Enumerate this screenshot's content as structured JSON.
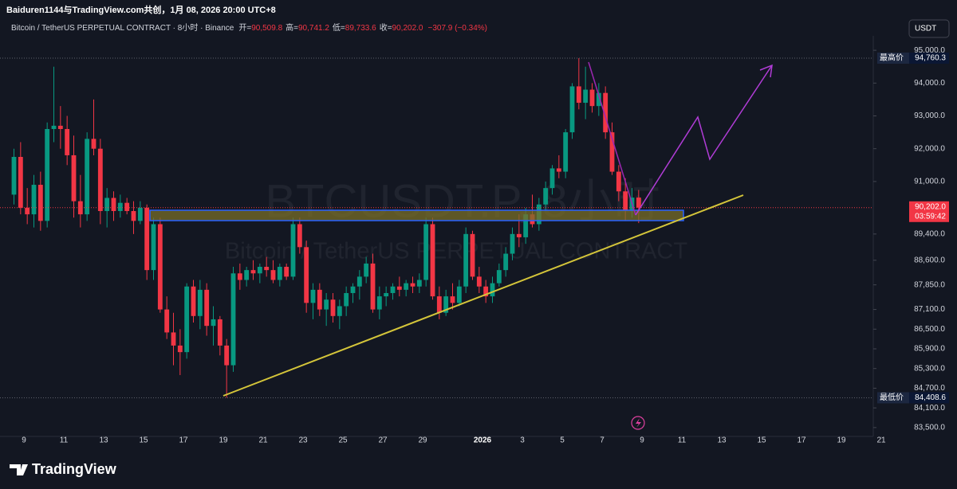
{
  "header": {
    "credit": "Baiduren1144与TradingView.com共创，1月 08, 2026 20:00 UTC+8",
    "legend": [
      {
        "label": "开=",
        "value": "90,509.8"
      },
      {
        "label": "高=",
        "value": "90,741.2"
      },
      {
        "label": "低=",
        "value": "89,733.6"
      },
      {
        "label": "收=",
        "value": "90,202.0"
      }
    ],
    "change": "−307.9 (−0.34%)",
    "currency": "USDT"
  },
  "chart_data": {
    "type": "candlestick",
    "title": "Bitcoin / TetherUS PERPETUAL CONTRACT · 8小时 · Binance",
    "watermark": "BTCUSDT.P, 8小时",
    "watermark_subtitle": "Bitcoin / TetherUS PERPETUAL CONTRACT",
    "up_color": "#089981",
    "down_color": "#f23645",
    "open": [
      90600,
      91750,
      90200,
      90000,
      90900,
      89800,
      92600,
      92700,
      92600,
      91800,
      90400,
      90000,
      92300,
      92000,
      90100,
      90500,
      90100,
      90350,
      90100,
      89800,
      90200,
      88300,
      89700,
      87100,
      86400,
      86000,
      85800,
      87800,
      86900,
      87700,
      86600,
      86800,
      86000,
      85400,
      88200,
      88000,
      88300,
      88200,
      88400,
      88300,
      88000,
      88400,
      88100,
      89700,
      89000,
      87300,
      87700,
      87100,
      87400,
      86900,
      87200,
      87600,
      87800,
      88100,
      88500,
      87100,
      87500,
      87600,
      87800,
      87700,
      87900,
      87800,
      88000,
      89700,
      87500,
      87000,
      87500,
      87300,
      87800,
      89400,
      88100,
      87800,
      87500,
      87900,
      88300,
      88800,
      89400,
      89300,
      90000,
      89700,
      90300,
      90800,
      91400,
      91300,
      92500,
      93900,
      93400,
      93800,
      93300,
      93700,
      92500,
      91300,
      90700,
      90100,
      90509.8
    ],
    "high": [
      92000,
      92200,
      90800,
      91200,
      91300,
      92800,
      94500,
      93300,
      93000,
      92400,
      91200,
      92500,
      93500,
      92300,
      90800,
      90700,
      90600,
      90500,
      90400,
      90400,
      90300,
      89900,
      89900,
      87500,
      87000,
      86500,
      87900,
      88000,
      88000,
      87900,
      87200,
      86900,
      86200,
      88400,
      88500,
      88400,
      88600,
      88500,
      88700,
      88600,
      88500,
      88500,
      89900,
      89900,
      89200,
      87900,
      87900,
      87600,
      87600,
      87400,
      87800,
      87900,
      88300,
      88700,
      88800,
      87800,
      87800,
      87900,
      88100,
      88000,
      88100,
      88200,
      89900,
      89900,
      87800,
      87700,
      87900,
      88000,
      89600,
      89500,
      88400,
      88000,
      88100,
      88500,
      89000,
      89600,
      90000,
      90200,
      90600,
      90500,
      91000,
      91500,
      91800,
      92600,
      94000,
      94760.3,
      94500,
      94000,
      94000,
      93900,
      92800,
      91500,
      91100,
      90800,
      90741.2
    ],
    "low": [
      90300,
      90000,
      89700,
      89600,
      89500,
      89600,
      92200,
      92000,
      91500,
      89900,
      89600,
      89800,
      91800,
      89700,
      89600,
      89800,
      89900,
      90000,
      89400,
      89700,
      88000,
      88000,
      87000,
      86200,
      85400,
      85100,
      85600,
      86700,
      86500,
      86300,
      86000,
      85700,
      84408.6,
      85200,
      87700,
      87800,
      88000,
      87900,
      88100,
      87900,
      87800,
      88000,
      88000,
      88800,
      87000,
      86800,
      86900,
      86600,
      86700,
      86500,
      86900,
      87300,
      87400,
      87900,
      87000,
      86800,
      87200,
      87400,
      87500,
      87500,
      87600,
      87600,
      87800,
      87400,
      86800,
      86900,
      87100,
      87200,
      87600,
      88000,
      87600,
      87300,
      87300,
      87800,
      88100,
      88600,
      89000,
      89100,
      89600,
      89500,
      90100,
      90600,
      91100,
      91100,
      92300,
      93200,
      92900,
      93100,
      93000,
      92300,
      91200,
      90400,
      89800,
      89900,
      89733.6
    ],
    "close": [
      91750,
      90200,
      90000,
      90900,
      89800,
      92600,
      92700,
      92600,
      91800,
      90400,
      90000,
      92300,
      92000,
      90100,
      90500,
      90100,
      90350,
      90100,
      89800,
      90200,
      88300,
      89700,
      87100,
      86400,
      86000,
      85800,
      87800,
      86900,
      87700,
      86600,
      86800,
      86000,
      85400,
      88200,
      88000,
      88300,
      88200,
      88400,
      88300,
      88000,
      88400,
      88100,
      89700,
      89000,
      87300,
      87700,
      87100,
      87400,
      86900,
      87200,
      87600,
      87800,
      88100,
      88500,
      87100,
      87500,
      87600,
      87800,
      87700,
      87900,
      87800,
      88000,
      89700,
      87500,
      87000,
      87500,
      87300,
      87800,
      89400,
      88100,
      87800,
      87500,
      87900,
      88300,
      88800,
      89400,
      89300,
      90000,
      89700,
      90300,
      90800,
      91400,
      91300,
      92500,
      93900,
      93400,
      93800,
      93300,
      93700,
      92500,
      91300,
      90700,
      90100,
      90509.8,
      90202.0
    ],
    "xlim": [
      -1.6,
      129.8
    ],
    "xticks": [
      {
        "value": 2,
        "label": "9"
      },
      {
        "value": 8,
        "label": "11"
      },
      {
        "value": 14,
        "label": "13"
      },
      {
        "value": 20,
        "label": "15"
      },
      {
        "value": 26,
        "label": "17"
      },
      {
        "value": 32,
        "label": "19"
      },
      {
        "value": 38,
        "label": "21"
      },
      {
        "value": 44,
        "label": "23"
      },
      {
        "value": 50,
        "label": "25"
      },
      {
        "value": 56,
        "label": "27"
      },
      {
        "value": 62,
        "label": "29"
      },
      {
        "value": 71,
        "label": "2026"
      },
      {
        "value": 77,
        "label": "3"
      },
      {
        "value": 83,
        "label": "5"
      },
      {
        "value": 89,
        "label": "7"
      },
      {
        "value": 95,
        "label": "9"
      },
      {
        "value": 101,
        "label": "11"
      },
      {
        "value": 107,
        "label": "13"
      },
      {
        "value": 113,
        "label": "15"
      },
      {
        "value": 119,
        "label": "17"
      },
      {
        "value": 125,
        "label": "19"
      },
      {
        "value": 131,
        "label": "21"
      }
    ],
    "ylim": [
      83230,
      95440
    ],
    "yticks": [
      {
        "value": 95000,
        "label": "95,000.0"
      },
      {
        "value": 94000,
        "label": "94,000.0"
      },
      {
        "value": 93000,
        "label": "93,000.0"
      },
      {
        "value": 92000,
        "label": "92,000.0"
      },
      {
        "value": 91000,
        "label": "91,000.0"
      },
      {
        "value": 89400,
        "label": "89,400.0"
      },
      {
        "value": 88600,
        "label": "88,600.0"
      },
      {
        "value": 87850,
        "label": "87,850.0"
      },
      {
        "value": 87100,
        "label": "87,100.0"
      },
      {
        "value": 86500,
        "label": "86,500.0"
      },
      {
        "value": 85900,
        "label": "85,900.0"
      },
      {
        "value": 85300,
        "label": "85,300.0"
      },
      {
        "value": 84700,
        "label": "84,700.0"
      },
      {
        "value": 84100,
        "label": "84,100.0"
      },
      {
        "value": 83500,
        "label": "83,500.0"
      }
    ],
    "grid": false,
    "high_label": "最高价",
    "high_value": "94,760.3",
    "low_label": "最低价",
    "low_value": "84,408.6",
    "last_price": "90,202.0",
    "countdown": "03:59:42"
  },
  "footer": {
    "brand": "TradingView"
  }
}
